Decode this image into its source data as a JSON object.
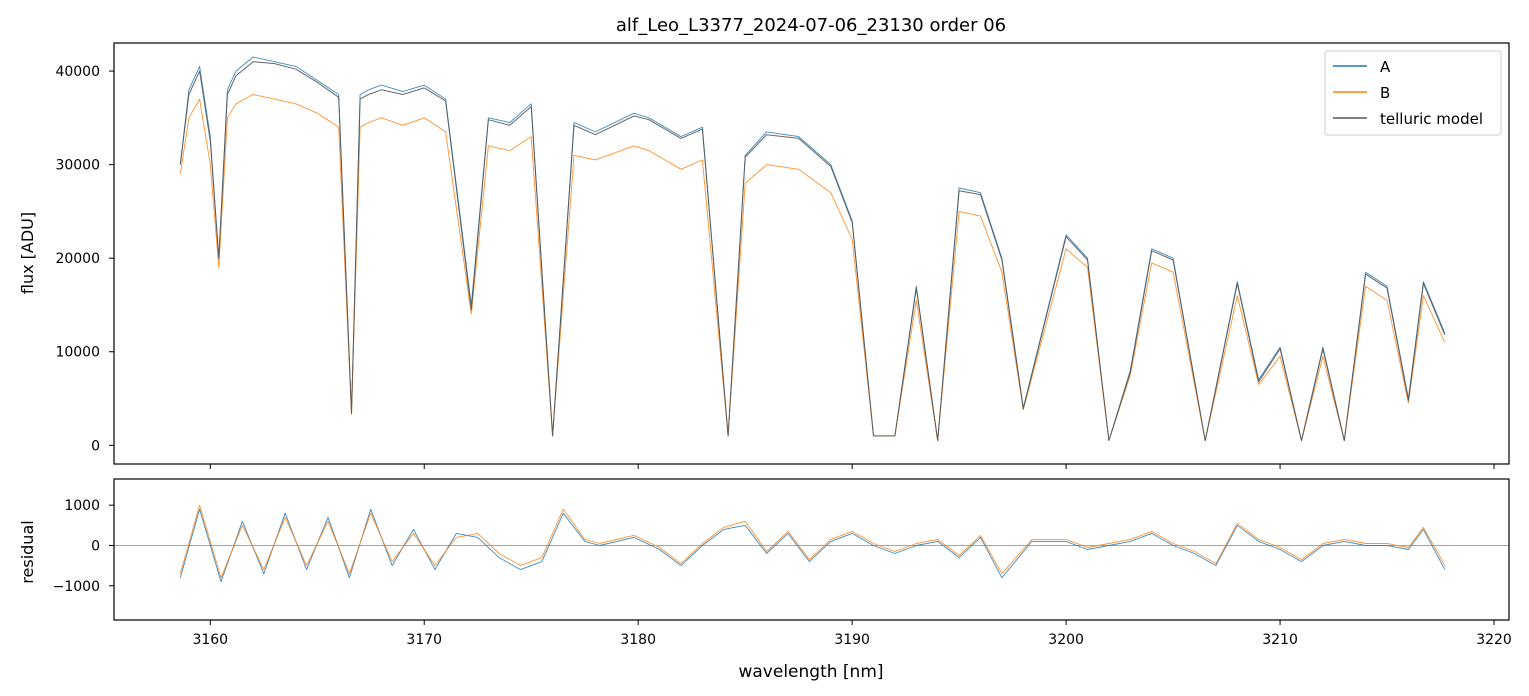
{
  "figure": {
    "title": "alf_Leo_L3377_2024-07-06_23130  order 06"
  },
  "colors": {
    "A": "#1f77b4",
    "B": "#ff7f0e",
    "model": "#555555",
    "zero_line": "#888888"
  },
  "chart_data": [
    {
      "type": "line",
      "panel": "top",
      "title": "alf_Leo_L3377_2024-07-06_23130  order 06",
      "xlabel": "",
      "ylabel": "flux [ADU]",
      "xlim": [
        3155.5,
        3220.7
      ],
      "ylim": [
        -2000,
        43000
      ],
      "yticks": [
        0,
        10000,
        20000,
        30000,
        40000
      ],
      "grid": false,
      "legend": "top-right",
      "legend_entries": [
        "A",
        "B",
        "telluric model"
      ],
      "series": [
        {
          "name": "A",
          "color": "#1f77b4",
          "x": [
            3158.6,
            3159.0,
            3159.5,
            3160.0,
            3160.4,
            3160.8,
            3161.2,
            3162.0,
            3163.0,
            3164.0,
            3165.0,
            3166.0,
            3166.6,
            3167.0,
            3167.4,
            3168.0,
            3169.0,
            3170.0,
            3171.0,
            3172.2,
            3173.0,
            3174.0,
            3175.0,
            3176.0,
            3177.0,
            3178.0,
            3179.8,
            3180.5,
            3182.0,
            3183.0,
            3184.2,
            3185.0,
            3186.0,
            3187.5,
            3189.0,
            3190.0,
            3191.0,
            3192.0,
            3193.0,
            3194.0,
            3195.0,
            3196.0,
            3197.0,
            3198.0,
            3200.0,
            3201.0,
            3202.0,
            3203.0,
            3204.0,
            3205.0,
            3206.5,
            3208.0,
            3209.0,
            3210.0,
            3211.0,
            3212.0,
            3213.0,
            3214.0,
            3215.0,
            3216.0,
            3216.7,
            3217.7
          ],
          "values": [
            30000,
            38000,
            40500,
            33000,
            20000,
            38000,
            40000,
            41500,
            41000,
            40500,
            39000,
            37500,
            3500,
            37500,
            38000,
            38500,
            37800,
            38500,
            37000,
            15000,
            35000,
            34500,
            36500,
            1000,
            34500,
            33500,
            35500,
            35000,
            33000,
            34000,
            1000,
            31000,
            33500,
            33000,
            30000,
            24000,
            1000,
            1000,
            17000,
            500,
            27500,
            27000,
            20000,
            4000,
            22500,
            20000,
            500,
            8000,
            21000,
            20000,
            500,
            17500,
            7000,
            10500,
            500,
            10500,
            500,
            18500,
            17000,
            5000,
            17500,
            12000
          ]
        },
        {
          "name": "B",
          "color": "#ff7f0e",
          "x": [
            3158.6,
            3159.0,
            3159.5,
            3160.0,
            3160.4,
            3160.8,
            3161.2,
            3162.0,
            3163.0,
            3164.0,
            3165.0,
            3166.0,
            3166.6,
            3167.0,
            3167.4,
            3168.0,
            3169.0,
            3170.0,
            3171.0,
            3172.2,
            3173.0,
            3174.0,
            3175.0,
            3176.0,
            3177.0,
            3178.0,
            3179.8,
            3180.5,
            3182.0,
            3183.0,
            3184.2,
            3185.0,
            3186.0,
            3187.5,
            3189.0,
            3190.0,
            3191.0,
            3192.0,
            3193.0,
            3194.0,
            3195.0,
            3196.0,
            3197.0,
            3198.0,
            3200.0,
            3201.0,
            3202.0,
            3203.0,
            3204.0,
            3205.0,
            3206.5,
            3208.0,
            3209.0,
            3210.0,
            3211.0,
            3212.0,
            3213.0,
            3214.0,
            3215.0,
            3216.0,
            3216.7,
            3217.7
          ],
          "values": [
            29000,
            35000,
            37000,
            30000,
            19000,
            35000,
            36500,
            37500,
            37000,
            36500,
            35500,
            34000,
            3300,
            34000,
            34500,
            35000,
            34200,
            35000,
            33500,
            14000,
            32000,
            31500,
            33000,
            1000,
            31000,
            30500,
            32000,
            31500,
            29500,
            30500,
            1000,
            28000,
            30000,
            29500,
            27000,
            22000,
            1000,
            1000,
            15500,
            500,
            25000,
            24500,
            18500,
            3800,
            21000,
            19000,
            500,
            7500,
            19500,
            18500,
            500,
            16000,
            6500,
            9500,
            500,
            9500,
            500,
            17000,
            15500,
            4500,
            16000,
            11000
          ]
        },
        {
          "name": "telluric model",
          "color": "#555555",
          "x": [
            3158.6,
            3159.0,
            3159.5,
            3160.0,
            3160.4,
            3160.8,
            3161.2,
            3162.0,
            3163.0,
            3164.0,
            3165.0,
            3166.0,
            3166.6,
            3167.0,
            3167.4,
            3168.0,
            3169.0,
            3170.0,
            3171.0,
            3172.2,
            3173.0,
            3174.0,
            3175.0,
            3176.0,
            3177.0,
            3178.0,
            3179.8,
            3180.5,
            3182.0,
            3183.0,
            3184.2,
            3185.0,
            3186.0,
            3187.5,
            3189.0,
            3190.0,
            3191.0,
            3192.0,
            3193.0,
            3194.0,
            3195.0,
            3196.0,
            3197.0,
            3198.0,
            3200.0,
            3201.0,
            3202.0,
            3203.0,
            3204.0,
            3205.0,
            3206.5,
            3208.0,
            3209.0,
            3210.0,
            3211.0,
            3212.0,
            3213.0,
            3214.0,
            3215.0,
            3216.0,
            3216.7,
            3217.7
          ],
          "values": [
            30000,
            37500,
            40000,
            32500,
            20000,
            37500,
            39500,
            41000,
            40800,
            40200,
            38800,
            37200,
            3400,
            37000,
            37500,
            38000,
            37500,
            38200,
            36800,
            14500,
            34800,
            34200,
            36200,
            1000,
            34200,
            33200,
            35200,
            34800,
            32800,
            33800,
            1000,
            30800,
            33200,
            32800,
            29800,
            23800,
            1000,
            1000,
            16800,
            500,
            27200,
            26800,
            19800,
            3900,
            22300,
            19800,
            500,
            7800,
            20800,
            19800,
            500,
            17300,
            6800,
            10300,
            500,
            10300,
            500,
            18300,
            16800,
            4800,
            17300,
            11800
          ]
        }
      ]
    },
    {
      "type": "line",
      "panel": "bottom",
      "xlabel": "wavelength [nm]",
      "ylabel": "residual",
      "xlim": [
        3155.5,
        3220.7
      ],
      "ylim": [
        -1850,
        1650
      ],
      "xticks": [
        3160,
        3170,
        3180,
        3190,
        3200,
        3210,
        3220
      ],
      "yticks": [
        -1000,
        0,
        1000
      ],
      "grid": false,
      "reference_line_y": 0,
      "series": [
        {
          "name": "A",
          "color": "#1f77b4",
          "x": [
            3158.6,
            3159.5,
            3160.5,
            3161.5,
            3162.5,
            3163.5,
            3164.5,
            3165.5,
            3166.5,
            3167.5,
            3168.5,
            3169.5,
            3170.5,
            3171.5,
            3172.5,
            3173.5,
            3174.5,
            3175.5,
            3176.5,
            3177.5,
            3178.2,
            3179.8,
            3181.0,
            3182.0,
            3183.0,
            3184.0,
            3185.0,
            3186.0,
            3187.0,
            3188.0,
            3189.0,
            3190.0,
            3191.0,
            3192.0,
            3193.0,
            3194.0,
            3195.0,
            3196.0,
            3197.0,
            3198.4,
            3200.0,
            3201.0,
            3202.0,
            3203.0,
            3204.0,
            3205.0,
            3206.0,
            3207.0,
            3208.0,
            3209.0,
            3210.0,
            3211.0,
            3212.0,
            3213.0,
            3214.0,
            3215.0,
            3216.0,
            3216.7,
            3217.7
          ],
          "values": [
            -800,
            900,
            -900,
            600,
            -700,
            800,
            -600,
            700,
            -800,
            900,
            -500,
            400,
            -600,
            300,
            200,
            -300,
            -600,
            -400,
            800,
            100,
            0,
            200,
            -100,
            -500,
            0,
            400,
            500,
            -200,
            300,
            -400,
            100,
            300,
            0,
            -200,
            0,
            100,
            -300,
            200,
            -800,
            100,
            100,
            -100,
            0,
            100,
            300,
            0,
            -200,
            -500,
            500,
            100,
            -100,
            -400,
            0,
            100,
            0,
            0,
            -100,
            400,
            -600
          ]
        },
        {
          "name": "B",
          "color": "#ff7f0e",
          "x": [
            3158.6,
            3159.5,
            3160.5,
            3161.5,
            3162.5,
            3163.5,
            3164.5,
            3165.5,
            3166.5,
            3167.5,
            3168.5,
            3169.5,
            3170.5,
            3171.5,
            3172.5,
            3173.5,
            3174.5,
            3175.5,
            3176.5,
            3177.5,
            3178.2,
            3179.8,
            3181.0,
            3182.0,
            3183.0,
            3184.0,
            3185.0,
            3186.0,
            3187.0,
            3188.0,
            3189.0,
            3190.0,
            3191.0,
            3192.0,
            3193.0,
            3194.0,
            3195.0,
            3196.0,
            3197.0,
            3198.4,
            3200.0,
            3201.0,
            3202.0,
            3203.0,
            3204.0,
            3205.0,
            3206.0,
            3207.0,
            3208.0,
            3209.0,
            3210.0,
            3211.0,
            3212.0,
            3213.0,
            3214.0,
            3215.0,
            3216.0,
            3216.7,
            3217.7
          ],
          "values": [
            -700,
            1000,
            -800,
            500,
            -600,
            700,
            -500,
            600,
            -700,
            800,
            -400,
            300,
            -500,
            200,
            300,
            -200,
            -500,
            -300,
            900,
            150,
            50,
            250,
            -50,
            -450,
            50,
            450,
            600,
            -150,
            350,
            -350,
            150,
            350,
            50,
            -150,
            50,
            150,
            -250,
            250,
            -700,
            150,
            150,
            -50,
            50,
            150,
            350,
            50,
            -150,
            -450,
            550,
            150,
            -50,
            -350,
            50,
            150,
            50,
            50,
            -50,
            450,
            -500
          ]
        }
      ]
    }
  ]
}
